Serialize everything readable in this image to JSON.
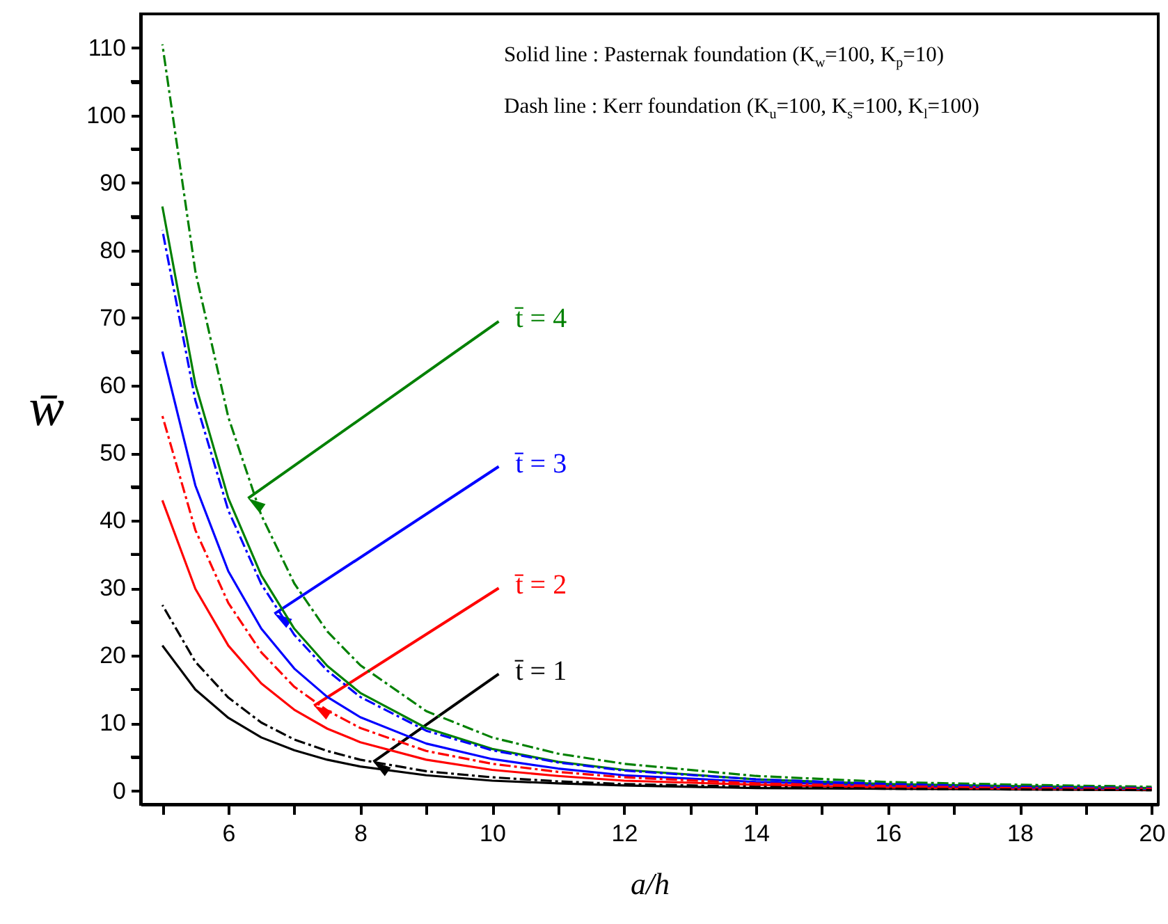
{
  "chart_data": {
    "type": "line",
    "x": [
      5,
      5.5,
      6,
      6.5,
      7,
      7.5,
      8,
      9,
      10,
      11,
      12,
      14,
      16,
      18,
      20
    ],
    "xlim": [
      4.67,
      20.1
    ],
    "xticks": [
      {
        "value": 5,
        "label": null
      },
      6,
      {
        "value": 7,
        "label": null
      },
      8,
      {
        "value": 9,
        "label": null
      },
      10,
      {
        "value": 11,
        "label": null
      },
      12,
      {
        "value": 13,
        "label": null
      },
      14,
      {
        "value": 15,
        "label": null
      },
      16,
      {
        "value": 17,
        "label": null
      },
      18,
      {
        "value": 19,
        "label": null
      },
      20
    ],
    "ylim": [
      -2,
      115
    ],
    "yticks": [
      0,
      {
        "value": 5,
        "label": null
      },
      10,
      {
        "value": 15,
        "label": null
      },
      20,
      {
        "value": 25,
        "label": null
      },
      30,
      {
        "value": 35,
        "label": null
      },
      40,
      {
        "value": 45,
        "label": null
      },
      50,
      {
        "value": 55,
        "label": null
      },
      60,
      {
        "value": 65,
        "label": null
      },
      70,
      {
        "value": 75,
        "label": null
      },
      80,
      {
        "value": 85,
        "label": null
      },
      90,
      {
        "value": 95,
        "label": null
      },
      100,
      {
        "value": 105,
        "label": null
      },
      110
    ],
    "xlabel": "a/h",
    "ylabel": "w̄",
    "grid": false,
    "marker": "none",
    "series": [
      {
        "color": "#000000",
        "line_style": "solid",
        "values": [
          21.5,
          15.0,
          10.8,
          7.9,
          6.0,
          4.6,
          3.6,
          2.3,
          1.5,
          1.1,
          0.8,
          0.4,
          0.3,
          0.2,
          0.1
        ]
      },
      {
        "color": "#000000",
        "line_style": "dashed",
        "values": [
          27.5,
          19.1,
          13.8,
          10.1,
          7.6,
          5.9,
          4.6,
          2.9,
          2.0,
          1.4,
          1.0,
          0.6,
          0.3,
          0.2,
          0.1
        ]
      },
      {
        "color": "#ff0000",
        "line_style": "solid",
        "values": [
          43,
          29.9,
          21.5,
          15.9,
          12.0,
          9.2,
          7.2,
          4.6,
          3.1,
          2.2,
          1.5,
          0.9,
          0.5,
          0.3,
          0.2
        ]
      },
      {
        "color": "#ff0000",
        "line_style": "dashed",
        "values": [
          55.5,
          38.6,
          27.8,
          20.5,
          15.4,
          11.9,
          9.3,
          5.9,
          4.0,
          2.8,
          2.0,
          1.1,
          0.7,
          0.4,
          0.3
        ]
      },
      {
        "color": "#0000ff",
        "line_style": "solid",
        "values": [
          65,
          45.2,
          32.5,
          24.0,
          18.1,
          13.9,
          10.9,
          7.0,
          4.7,
          3.3,
          2.3,
          1.3,
          0.8,
          0.5,
          0.3
        ]
      },
      {
        "color": "#0000ff",
        "line_style": "dashed",
        "values": [
          83,
          57.8,
          41.5,
          30.6,
          23.1,
          17.8,
          13.9,
          8.9,
          6.0,
          4.2,
          3.0,
          1.7,
          1.0,
          0.6,
          0.4
        ]
      },
      {
        "color": "#008000",
        "line_style": "solid",
        "values": [
          86.5,
          60.2,
          43.3,
          31.9,
          24.0,
          18.5,
          14.5,
          9.3,
          6.2,
          4.3,
          3.1,
          1.7,
          1.0,
          0.7,
          0.4
        ]
      },
      {
        "color": "#008000",
        "line_style": "dashed",
        "values": [
          110.5,
          76.9,
          55.3,
          40.8,
          30.7,
          23.6,
          18.6,
          11.8,
          7.9,
          5.5,
          4.0,
          2.2,
          1.3,
          0.9,
          0.6
        ]
      }
    ],
    "annotations": [
      {
        "text": "t̄ = 1",
        "x": 8.2,
        "y": 4.3
      },
      {
        "text": "t̄ = 2",
        "x": 7.3,
        "y": 12.6
      },
      {
        "text": "t̄ = 3",
        "x": 6.7,
        "y": 26.2
      },
      {
        "text": "t̄ = 4",
        "x": 6.3,
        "y": 43.3
      },
      "Solid line : Pasternak foundation (K$_{w}$=100, K$_{p}$=10)",
      "Dash line : Kerr foundation (K$_{u}$=100, K$_{s}$=100, K$_{l}$=100)"
    ]
  }
}
